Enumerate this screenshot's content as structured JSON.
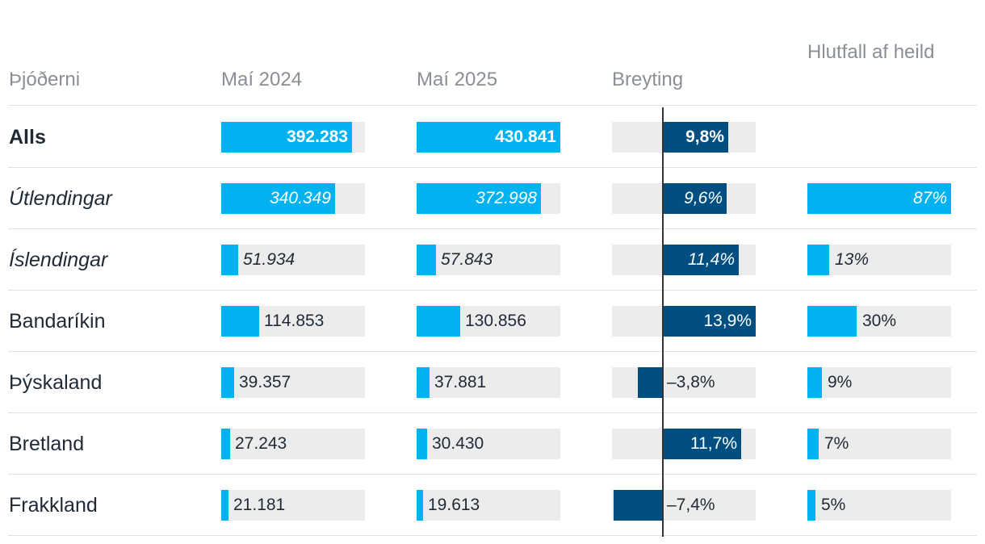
{
  "chart_data": {
    "type": "table",
    "columns": [
      "Þjóðerni",
      "Maí 2024",
      "Maí 2025",
      "Breyting",
      "Hlutfall af heild"
    ],
    "colors": {
      "count": "#00b2ef",
      "change": "#004f80",
      "track": "#ececec"
    },
    "scales": {
      "count_max": 430841,
      "change_max": 13.9,
      "share_max": 87
    },
    "rows": [
      {
        "label": "Alls",
        "style": "bold",
        "may2024": 392283,
        "may2024_text": "392.283",
        "may2025": 430841,
        "may2025_text": "430.841",
        "change": 9.8,
        "change_text": "9,8%",
        "share": null,
        "share_text": ""
      },
      {
        "label": "Útlendingar",
        "style": "italic",
        "may2024": 340349,
        "may2024_text": "340.349",
        "may2025": 372998,
        "may2025_text": "372.998",
        "change": 9.6,
        "change_text": "9,6%",
        "share": 87,
        "share_text": "87%"
      },
      {
        "label": "Íslendingar",
        "style": "italic",
        "may2024": 51934,
        "may2024_text": "51.934",
        "may2025": 57843,
        "may2025_text": "57.843",
        "change": 11.4,
        "change_text": "11,4%",
        "share": 13,
        "share_text": "13%"
      },
      {
        "label": "Bandaríkin",
        "style": "normal",
        "may2024": 114853,
        "may2024_text": "114.853",
        "may2025": 130856,
        "may2025_text": "130.856",
        "change": 13.9,
        "change_text": "13,9%",
        "share": 30,
        "share_text": "30%"
      },
      {
        "label": "Þýskaland",
        "style": "normal",
        "may2024": 39357,
        "may2024_text": "39.357",
        "may2025": 37881,
        "may2025_text": "37.881",
        "change": -3.8,
        "change_text": "–3,8%",
        "share": 9,
        "share_text": "9%"
      },
      {
        "label": "Bretland",
        "style": "normal",
        "may2024": 27243,
        "may2024_text": "27.243",
        "may2025": 30430,
        "may2025_text": "30.430",
        "change": 11.7,
        "change_text": "11,7%",
        "share": 7,
        "share_text": "7%"
      },
      {
        "label": "Frakkland",
        "style": "normal",
        "may2024": 21181,
        "may2024_text": "21.181",
        "may2025": 19613,
        "may2025_text": "19.613",
        "change": -7.4,
        "change_text": "–7,4%",
        "share": 5,
        "share_text": "5%"
      }
    ]
  }
}
